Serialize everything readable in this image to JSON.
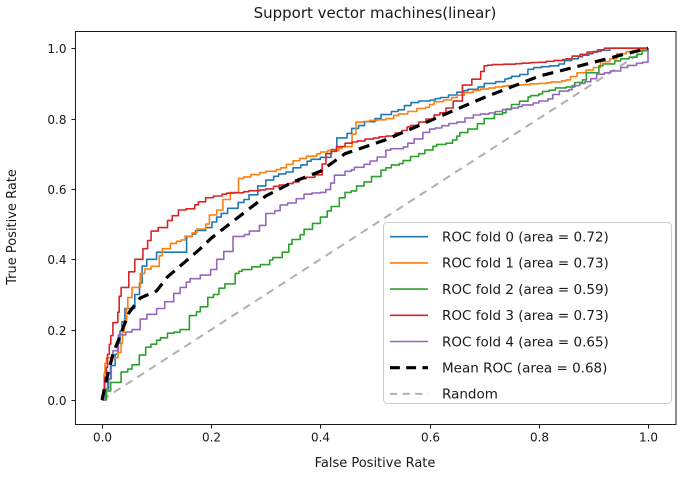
{
  "chart_data": {
    "type": "line",
    "title": "Support vector machines(linear)",
    "xlabel": "False Positive Rate",
    "ylabel": "True Positive Rate",
    "xticks": [
      "0.0",
      "0.2",
      "0.4",
      "0.6",
      "0.8",
      "1.0"
    ],
    "yticks": [
      "0.0",
      "0.2",
      "0.4",
      "0.6",
      "0.8",
      "1.0"
    ],
    "xlim": [
      -0.05,
      1.05
    ],
    "ylim": [
      -0.05,
      1.05
    ],
    "grid": false,
    "legend": {
      "position": "lower right"
    },
    "series": [
      {
        "name": "ROC fold 0 (area = 0.72)",
        "area": 0.72,
        "color": "#1f77b4",
        "render": "step",
        "width": 1.6,
        "dash": [],
        "points": [
          [
            0,
            0
          ],
          [
            0.012,
            0.06
          ],
          [
            0.024,
            0.13
          ],
          [
            0.042,
            0.26
          ],
          [
            0.06,
            0.3
          ],
          [
            0.082,
            0.4
          ],
          [
            0.1,
            0.42
          ],
          [
            0.14,
            0.42
          ],
          [
            0.155,
            0.465
          ],
          [
            0.19,
            0.49
          ],
          [
            0.21,
            0.52
          ],
          [
            0.23,
            0.545
          ],
          [
            0.26,
            0.57
          ],
          [
            0.3,
            0.625
          ],
          [
            0.35,
            0.66
          ],
          [
            0.4,
            0.69
          ],
          [
            0.43,
            0.745
          ],
          [
            0.47,
            0.78
          ],
          [
            0.5,
            0.8
          ],
          [
            0.53,
            0.82
          ],
          [
            0.58,
            0.85
          ],
          [
            0.62,
            0.86
          ],
          [
            0.65,
            0.875
          ],
          [
            0.7,
            0.9
          ],
          [
            0.75,
            0.92
          ],
          [
            0.78,
            0.94
          ],
          [
            0.82,
            0.95
          ],
          [
            0.86,
            0.97
          ],
          [
            0.88,
            0.98
          ],
          [
            0.93,
            1.0
          ],
          [
            1.0,
            1.0
          ]
        ]
      },
      {
        "name": "ROC fold 1 (area = 0.73)",
        "area": 0.73,
        "color": "#ff7f0e",
        "render": "step",
        "width": 1.6,
        "dash": [],
        "points": [
          [
            0,
            0
          ],
          [
            0.008,
            0.12
          ],
          [
            0.035,
            0.16
          ],
          [
            0.045,
            0.26
          ],
          [
            0.055,
            0.32
          ],
          [
            0.07,
            0.36
          ],
          [
            0.09,
            0.38
          ],
          [
            0.105,
            0.41
          ],
          [
            0.125,
            0.445
          ],
          [
            0.145,
            0.455
          ],
          [
            0.165,
            0.475
          ],
          [
            0.19,
            0.5
          ],
          [
            0.21,
            0.54
          ],
          [
            0.235,
            0.59
          ],
          [
            0.25,
            0.63
          ],
          [
            0.3,
            0.65
          ],
          [
            0.35,
            0.68
          ],
          [
            0.4,
            0.705
          ],
          [
            0.44,
            0.72
          ],
          [
            0.465,
            0.79
          ],
          [
            0.52,
            0.8
          ],
          [
            0.56,
            0.82
          ],
          [
            0.6,
            0.84
          ],
          [
            0.64,
            0.86
          ],
          [
            0.68,
            0.88
          ],
          [
            0.72,
            0.89
          ],
          [
            0.8,
            0.9
          ],
          [
            0.85,
            0.91
          ],
          [
            0.87,
            0.93
          ],
          [
            0.9,
            0.945
          ],
          [
            0.93,
            0.97
          ],
          [
            0.96,
            0.99
          ],
          [
            1.0,
            1.0
          ]
        ]
      },
      {
        "name": "ROC fold 2 (area = 0.59)",
        "area": 0.59,
        "color": "#2ca02c",
        "render": "step",
        "width": 1.6,
        "dash": [],
        "points": [
          [
            0,
            0
          ],
          [
            0.016,
            0.05
          ],
          [
            0.035,
            0.08
          ],
          [
            0.055,
            0.1
          ],
          [
            0.08,
            0.15
          ],
          [
            0.1,
            0.17
          ],
          [
            0.12,
            0.19
          ],
          [
            0.143,
            0.2
          ],
          [
            0.16,
            0.24
          ],
          [
            0.18,
            0.265
          ],
          [
            0.204,
            0.3
          ],
          [
            0.225,
            0.33
          ],
          [
            0.244,
            0.36
          ],
          [
            0.29,
            0.385
          ],
          [
            0.33,
            0.42
          ],
          [
            0.363,
            0.47
          ],
          [
            0.4,
            0.52
          ],
          [
            0.42,
            0.55
          ],
          [
            0.445,
            0.59
          ],
          [
            0.48,
            0.62
          ],
          [
            0.52,
            0.66
          ],
          [
            0.58,
            0.7
          ],
          [
            0.63,
            0.73
          ],
          [
            0.65,
            0.75
          ],
          [
            0.67,
            0.77
          ],
          [
            0.7,
            0.8
          ],
          [
            0.75,
            0.84
          ],
          [
            0.8,
            0.87
          ],
          [
            0.85,
            0.89
          ],
          [
            0.88,
            0.91
          ],
          [
            0.91,
            0.95
          ],
          [
            0.95,
            0.97
          ],
          [
            1.0,
            1.0
          ]
        ]
      },
      {
        "name": "ROC fold 3 (area = 0.73)",
        "area": 0.73,
        "color": "#d62728",
        "render": "step",
        "width": 1.6,
        "dash": [],
        "points": [
          [
            0,
            0
          ],
          [
            0.01,
            0.13
          ],
          [
            0.02,
            0.22
          ],
          [
            0.035,
            0.32
          ],
          [
            0.06,
            0.4
          ],
          [
            0.075,
            0.43
          ],
          [
            0.09,
            0.48
          ],
          [
            0.12,
            0.51
          ],
          [
            0.14,
            0.54
          ],
          [
            0.17,
            0.555
          ],
          [
            0.19,
            0.575
          ],
          [
            0.22,
            0.585
          ],
          [
            0.3,
            0.6
          ],
          [
            0.35,
            0.62
          ],
          [
            0.39,
            0.64
          ],
          [
            0.41,
            0.7
          ],
          [
            0.445,
            0.73
          ],
          [
            0.52,
            0.75
          ],
          [
            0.58,
            0.79
          ],
          [
            0.63,
            0.83
          ],
          [
            0.66,
            0.895
          ],
          [
            0.7,
            0.95
          ],
          [
            0.8,
            0.96
          ],
          [
            0.85,
            0.97
          ],
          [
            0.92,
            1.0
          ],
          [
            1.0,
            1.0
          ]
        ]
      },
      {
        "name": "ROC fold 4 (area = 0.65)",
        "area": 0.65,
        "color": "#9467bd",
        "render": "step",
        "width": 1.6,
        "dash": [],
        "points": [
          [
            0,
            0
          ],
          [
            0.01,
            0.06
          ],
          [
            0.02,
            0.14
          ],
          [
            0.03,
            0.185
          ],
          [
            0.055,
            0.2
          ],
          [
            0.07,
            0.23
          ],
          [
            0.1,
            0.26
          ],
          [
            0.143,
            0.32
          ],
          [
            0.18,
            0.355
          ],
          [
            0.21,
            0.4
          ],
          [
            0.24,
            0.465
          ],
          [
            0.27,
            0.48
          ],
          [
            0.3,
            0.53
          ],
          [
            0.34,
            0.56
          ],
          [
            0.37,
            0.585
          ],
          [
            0.4,
            0.59
          ],
          [
            0.445,
            0.65
          ],
          [
            0.48,
            0.67
          ],
          [
            0.52,
            0.71
          ],
          [
            0.56,
            0.73
          ],
          [
            0.6,
            0.77
          ],
          [
            0.65,
            0.79
          ],
          [
            0.68,
            0.81
          ],
          [
            0.72,
            0.82
          ],
          [
            0.75,
            0.83
          ],
          [
            0.8,
            0.85
          ],
          [
            0.875,
            0.9
          ],
          [
            0.92,
            0.93
          ],
          [
            0.95,
            0.945
          ],
          [
            0.99,
            0.96
          ],
          [
            1.0,
            1.0
          ]
        ]
      },
      {
        "name": "Mean ROC (area = 0.68)",
        "area": 0.68,
        "color": "#000000",
        "render": "line",
        "width": 3.2,
        "dash": [
          11,
          7
        ],
        "points": [
          [
            0,
            0
          ],
          [
            0.01,
            0.07
          ],
          [
            0.02,
            0.13
          ],
          [
            0.03,
            0.17
          ],
          [
            0.04,
            0.21
          ],
          [
            0.05,
            0.25
          ],
          [
            0.07,
            0.29
          ],
          [
            0.1,
            0.31
          ],
          [
            0.12,
            0.35
          ],
          [
            0.15,
            0.39
          ],
          [
            0.18,
            0.43
          ],
          [
            0.2,
            0.46
          ],
          [
            0.25,
            0.52
          ],
          [
            0.3,
            0.58
          ],
          [
            0.35,
            0.62
          ],
          [
            0.4,
            0.65
          ],
          [
            0.445,
            0.7
          ],
          [
            0.52,
            0.74
          ],
          [
            0.58,
            0.78
          ],
          [
            0.64,
            0.82
          ],
          [
            0.7,
            0.86
          ],
          [
            0.75,
            0.89
          ],
          [
            0.8,
            0.92
          ],
          [
            0.85,
            0.94
          ],
          [
            0.9,
            0.96
          ],
          [
            0.95,
            0.98
          ],
          [
            1.0,
            1.0
          ]
        ]
      },
      {
        "name": "Random",
        "color": "#b0b0b0",
        "render": "line",
        "width": 2,
        "dash": [
          8,
          6
        ],
        "points": [
          [
            0,
            0
          ],
          [
            1,
            1
          ]
        ]
      }
    ]
  }
}
